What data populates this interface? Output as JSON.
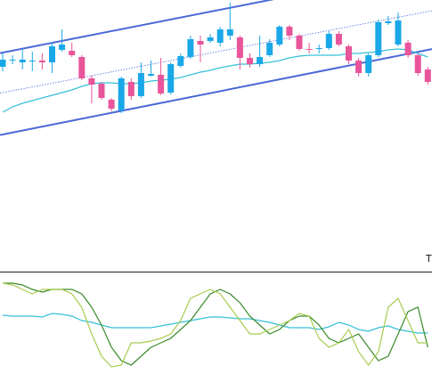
{
  "chart_data": {
    "type": "candlestick",
    "up_color": "#1aa8e8",
    "down_color": "#e8559a",
    "ylim": [
      0,
      300
    ],
    "open": [
      225,
      232,
      230,
      231,
      232,
      230,
      244,
      243,
      236,
      212,
      206,
      188,
      176,
      208,
      192,
      215,
      216,
      196,
      226,
      236,
      254,
      254,
      252,
      260,
      258,
      235,
      228,
      238,
      250,
      270,
      260,
      245,
      245,
      246,
      262,
      248,
      232,
      218,
      238,
      274,
      250,
      252,
      238,
      222
    ],
    "high": [
      240,
      238,
      245,
      242,
      240,
      252,
      267,
      252,
      238,
      215,
      208,
      190,
      214,
      212,
      230,
      232,
      235,
      230,
      240,
      260,
      260,
      262,
      270,
      297,
      260,
      240,
      260,
      256,
      272,
      272,
      262,
      252,
      250,
      265,
      265,
      250,
      235,
      240,
      278,
      282,
      286,
      255,
      240,
      225
    ],
    "low": [
      220,
      228,
      222,
      220,
      222,
      218,
      242,
      236,
      210,
      184,
      188,
      175,
      173,
      188,
      190,
      214,
      193,
      194,
      224,
      234,
      230,
      252,
      248,
      255,
      222,
      224,
      225,
      236,
      248,
      255,
      243,
      240,
      240,
      244,
      248,
      228,
      214,
      214,
      236,
      272,
      248,
      235,
      215,
      205
    ],
    "close": [
      233,
      233,
      233,
      232,
      230,
      248,
      250,
      238,
      212,
      205,
      190,
      178,
      212,
      192,
      218,
      217,
      195,
      228,
      237,
      256,
      250,
      258,
      267,
      267,
      235,
      228,
      236,
      252,
      270,
      260,
      245,
      244,
      246,
      262,
      250,
      232,
      218,
      238,
      275,
      276,
      277,
      238,
      218,
      208
    ],
    "series": [
      {
        "color": "#36c0d8",
        "values": [
          174,
          180,
          184,
          187,
          190,
          193,
          196,
          199,
          203,
          206,
          207,
          207,
          206,
          206,
          207,
          209,
          210,
          211,
          213,
          216,
          219,
          221,
          224,
          226,
          228,
          228,
          229,
          230,
          232,
          235,
          237,
          238,
          238,
          238,
          238,
          240,
          240,
          241,
          242,
          244,
          245,
          244,
          240,
          236
        ]
      }
    ],
    "trendlines": [
      {
        "color": "#4a68d8",
        "dashed": false,
        "start": [
          0,
          241
        ],
        "end": [
          27,
          300
        ]
      },
      {
        "color": "#4a68d8",
        "dashed": false,
        "start": [
          0,
          149
        ],
        "end": [
          43,
          244
        ]
      },
      {
        "color": "#5070e0",
        "dashed": true,
        "start": [
          0,
          196
        ],
        "end": [
          43,
          287
        ]
      }
    ],
    "annotations": [
      "Ti"
    ],
    "indicator": {
      "ylim": [
        0,
        105
      ],
      "series": [
        {
          "color": "#36c0d8",
          "values": [
            61,
            60,
            60,
            60,
            59,
            63,
            62,
            60,
            55,
            53,
            50,
            47,
            47,
            47,
            47,
            47,
            49,
            51,
            53,
            55,
            57,
            59,
            59,
            58,
            57,
            57,
            55,
            53,
            50,
            47,
            47,
            47,
            45,
            48,
            53,
            50,
            45,
            43,
            47,
            49,
            45,
            43,
            41,
            41
          ]
        },
        {
          "color": "#3a8a2a",
          "values": [
            97,
            97,
            95,
            90,
            87,
            90,
            90,
            90,
            85,
            70,
            50,
            25,
            10,
            5,
            15,
            25,
            30,
            35,
            45,
            55,
            70,
            85,
            90,
            85,
            75,
            60,
            50,
            40,
            45,
            55,
            60,
            60,
            50,
            35,
            30,
            35,
            40,
            25,
            10,
            15,
            40,
            65,
            70,
            25
          ]
        },
        {
          "color": "#a8cc50",
          "values": [
            97,
            95,
            90,
            85,
            90,
            90,
            90,
            85,
            70,
            40,
            15,
            3,
            5,
            30,
            30,
            32,
            35,
            40,
            55,
            80,
            85,
            90,
            85,
            70,
            55,
            40,
            40,
            45,
            50,
            55,
            63,
            60,
            35,
            25,
            30,
            45,
            20,
            5,
            20,
            70,
            80,
            55,
            30,
            30
          ]
        }
      ]
    }
  }
}
